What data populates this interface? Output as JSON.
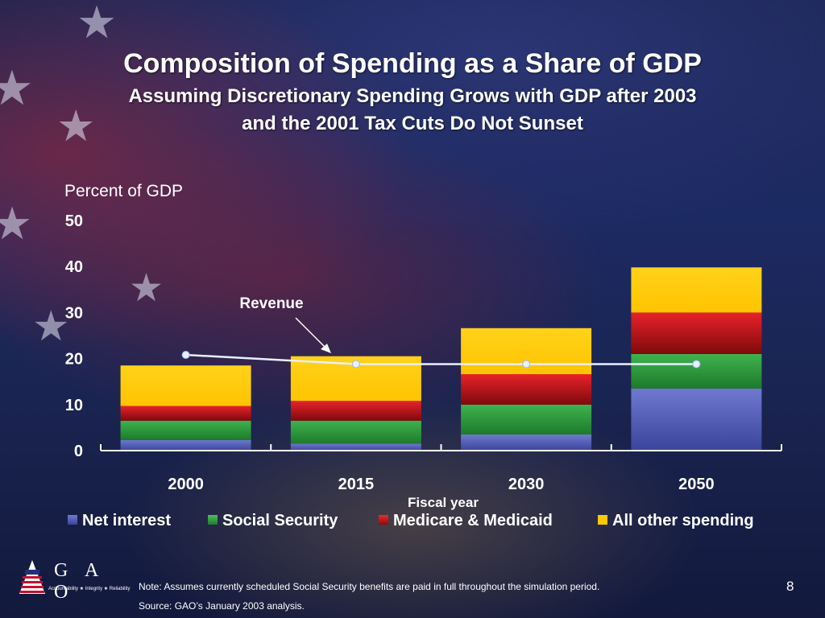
{
  "slide": {
    "title": "Composition of Spending as a Share of GDP",
    "subtitle_line1": "Assuming Discretionary Spending Grows with GDP after 2003",
    "subtitle_line2": "and the 2001 Tax Cuts Do Not Sunset",
    "note": "Note:  Assumes currently scheduled Social Security benefits are paid in full throughout the simulation period.",
    "source": "Source: GAO’s January 2003 analysis.",
    "page_number": "8",
    "logo": {
      "text": "G A O",
      "tagline": "Accountability ★ Integrity ★ Reliability"
    }
  },
  "chart_data": {
    "type": "bar",
    "stacked": true,
    "ylabel": "Percent of GDP",
    "xlabel": "Fiscal year",
    "ylim": [
      0,
      50
    ],
    "yticks": [
      "0",
      "10",
      "20",
      "30",
      "40",
      "50"
    ],
    "categories": [
      "2000",
      "2015",
      "2030",
      "2050"
    ],
    "series": [
      {
        "name": "Net interest",
        "color": "#4a55b0",
        "values": [
          2.3,
          1.5,
          3.5,
          13.5
        ]
      },
      {
        "name": "Social Security",
        "color": "#2e9a3c",
        "values": [
          4.2,
          5.0,
          6.5,
          7.5
        ]
      },
      {
        "name": "Medicare & Medicaid",
        "color": "#cc1418",
        "values": [
          3.2,
          4.3,
          6.6,
          9.0
        ]
      },
      {
        "name": "All other spending",
        "color": "#ffc800",
        "values": [
          8.8,
          9.7,
          10.0,
          9.8
        ]
      }
    ],
    "line": {
      "name": "Revenue",
      "color": "#e8f0ff",
      "values": [
        20.8,
        18.8,
        18.8,
        18.8
      ]
    },
    "annotation": "Revenue"
  }
}
